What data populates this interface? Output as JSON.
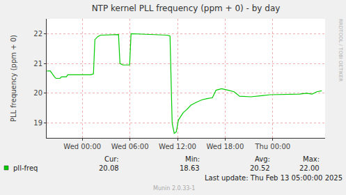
{
  "chart_data": {
    "type": "line",
    "title": "NTP kernel PLL frequency (ppm + 0) - by day",
    "y_label": "PLL frequency (ppm + 0)",
    "x": [
      -4.47,
      -4.04,
      -3.51,
      -3.33,
      -2.81,
      -2.63,
      -2.02,
      -1.84,
      1.05,
      1.4,
      1.58,
      1.93,
      2.28,
      4.56,
      4.74,
      5.09,
      5.96,
      6.14,
      8.07,
      10.7,
      11.05,
      11.32,
      11.58,
      11.84,
      12.11,
      12.46,
      12.72,
      13.16,
      13.68,
      14.39,
      15.09,
      15.7,
      16.4,
      16.84,
      17.54,
      18.42,
      19.12,
      19.82,
      21.23,
      22.63,
      23.68,
      27.37,
      28.25,
      28.95,
      29.56,
      30.18
    ],
    "series": [
      {
        "name": "pll-freq",
        "color": "#00cc00",
        "line_style": "solid",
        "values": [
          20.75,
          20.75,
          20.55,
          20.5,
          20.5,
          20.55,
          20.55,
          20.62,
          20.62,
          20.65,
          21.8,
          21.9,
          21.95,
          21.97,
          21.0,
          20.95,
          20.95,
          22.0,
          21.98,
          21.95,
          21.92,
          19.0,
          18.65,
          18.7,
          19.1,
          19.25,
          19.35,
          19.45,
          19.6,
          19.7,
          19.78,
          19.82,
          19.85,
          20.1,
          20.15,
          20.1,
          20.05,
          19.9,
          19.88,
          19.92,
          19.95,
          19.97,
          20.0,
          19.97,
          20.05,
          20.08
        ]
      }
    ],
    "xlim": [
      -4.5,
      30.6
    ],
    "xticks": [
      {
        "value": 0,
        "label": "Wed 00:00"
      },
      {
        "value": 6,
        "label": "Wed 06:00"
      },
      {
        "value": 12,
        "label": "Wed 12:00"
      },
      {
        "value": 18,
        "label": "Wed 18:00"
      },
      {
        "value": 24,
        "label": "Thu 00:00"
      }
    ],
    "ylim": [
      18.5,
      22.5
    ],
    "yticks": [
      19,
      20,
      21,
      22
    ],
    "grid": true,
    "stats": {
      "labels": [
        "Cur:",
        "Min:",
        "Avg:",
        "Max:"
      ],
      "values": [
        20.08,
        18.63,
        20.52,
        22.0
      ],
      "value_labels": [
        "20.08",
        "18.63",
        "20.52",
        "22.00"
      ]
    },
    "last_update": "Last update: Thu Feb 13 05:00:00 2025",
    "footer": "Munin 2.0.33-1",
    "side_text": "RRDTOOL / TOBI OETIKER"
  }
}
